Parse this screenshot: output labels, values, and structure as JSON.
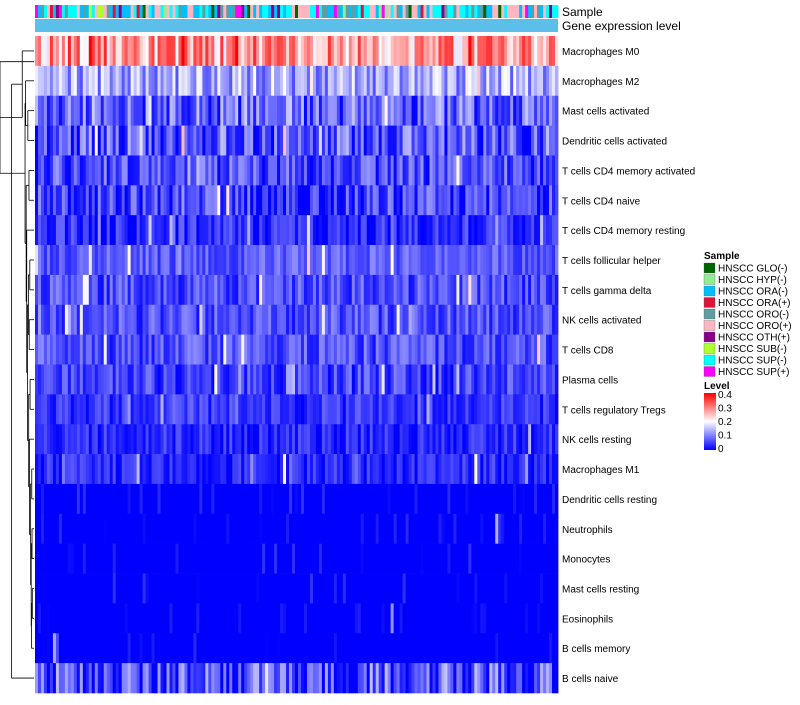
{
  "chart_data": {
    "type": "heatmap",
    "annotation_labels": [
      "Sample",
      "Gene expression level"
    ],
    "rows": [
      {
        "label": "Macrophages M0",
        "mean": 0.27,
        "spread": 0.09,
        "min": 0.12
      },
      {
        "label": "Macrophages M2",
        "mean": 0.13,
        "spread": 0.07,
        "min": 0.0
      },
      {
        "label": "Mast cells activated",
        "mean": 0.08,
        "spread": 0.08,
        "min": 0.0
      },
      {
        "label": "Dendritic cells activated",
        "mean": 0.07,
        "spread": 0.08,
        "min": 0.0
      },
      {
        "label": "T cells CD4 memory activated",
        "mean": 0.06,
        "spread": 0.06,
        "min": 0.0
      },
      {
        "label": "T cells CD4 naive",
        "mean": 0.05,
        "spread": 0.07,
        "min": 0.0
      },
      {
        "label": "T cells CD4 memory resting",
        "mean": 0.03,
        "spread": 0.05,
        "min": 0.0
      },
      {
        "label": "T cells follicular helper",
        "mean": 0.07,
        "spread": 0.04,
        "min": 0.0
      },
      {
        "label": "T cells gamma delta",
        "mean": 0.06,
        "spread": 0.05,
        "min": 0.0
      },
      {
        "label": "NK cells activated",
        "mean": 0.06,
        "spread": 0.05,
        "min": 0.0
      },
      {
        "label": "T cells CD8",
        "mean": 0.06,
        "spread": 0.05,
        "min": 0.0
      },
      {
        "label": "Plasma cells",
        "mean": 0.05,
        "spread": 0.05,
        "min": 0.0
      },
      {
        "label": "T cells regulatory  Tregs",
        "mean": 0.04,
        "spread": 0.04,
        "min": 0.0
      },
      {
        "label": "NK cells resting",
        "mean": 0.03,
        "spread": 0.04,
        "min": 0.0
      },
      {
        "label": "Macrophages M1",
        "mean": 0.03,
        "spread": 0.04,
        "min": 0.0
      },
      {
        "label": "Dendritic cells resting",
        "mean": 0.01,
        "spread": 0.03,
        "min": 0.0
      },
      {
        "label": "Neutrophils",
        "mean": 0.01,
        "spread": 0.03,
        "min": 0.0
      },
      {
        "label": "Monocytes",
        "mean": 0.01,
        "spread": 0.03,
        "min": 0.0
      },
      {
        "label": "Mast cells resting",
        "mean": 0.01,
        "spread": 0.03,
        "min": 0.0
      },
      {
        "label": "Eosinophils",
        "mean": 0.005,
        "spread": 0.02,
        "min": 0.0
      },
      {
        "label": "B cells memory",
        "mean": 0.005,
        "spread": 0.02,
        "min": 0.0
      },
      {
        "label": "B cells naive",
        "mean": 0.06,
        "spread": 0.09,
        "min": 0.0
      }
    ],
    "n_samples": 175,
    "sample_legend": {
      "title": "Sample",
      "items": [
        {
          "label": "HNSCC GLO(-)",
          "color": "#006400"
        },
        {
          "label": "HNSCC HYP(-)",
          "color": "#90EE90"
        },
        {
          "label": "HNSCC ORA(-)",
          "color": "#00BFFF"
        },
        {
          "label": "HNSCC ORA(+)",
          "color": "#DC143C"
        },
        {
          "label": "HNSCC ORO(-)",
          "color": "#5F9EA0"
        },
        {
          "label": "HNSCC ORO(+)",
          "color": "#FFB6C1"
        },
        {
          "label": "HNSCC OTH(+)",
          "color": "#8B008B"
        },
        {
          "label": "HNSCC SUB(-)",
          "color": "#ADFF2F"
        },
        {
          "label": "HNSCC SUP(-)",
          "color": "#00FFFF"
        },
        {
          "label": "HNSCC SUP(+)",
          "color": "#FF00FF"
        }
      ],
      "weights": [
        2,
        2,
        28,
        3,
        14,
        26,
        2,
        2,
        18,
        3
      ]
    },
    "level_legend": {
      "title": "Level",
      "ticks": [
        "0.4",
        "0.3",
        "0.2",
        "0.1",
        "0"
      ],
      "range": [
        0,
        0.4
      ],
      "colors": [
        "#0000FF",
        "#FFFFFF",
        "#FF0000"
      ]
    },
    "gene_expression_color": "#5BBFEA",
    "seed": 12345
  }
}
